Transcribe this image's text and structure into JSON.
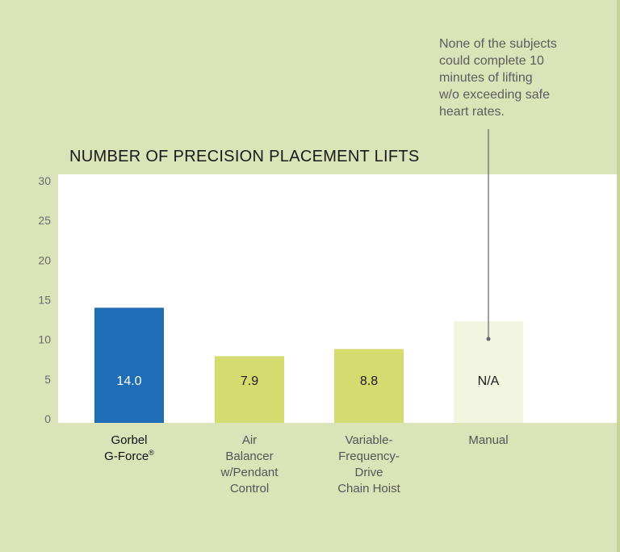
{
  "annotation": {
    "lines": [
      "None of the subjects",
      "could complete 10",
      "minutes of lifting",
      "w/o exceeding safe",
      "heart rates."
    ]
  },
  "colors": {
    "background": "#dbe3b9",
    "plot_area": "#ffffff",
    "gorbel": "#1f6db5",
    "comparison": "#d4dc6f",
    "na": "#f2f5df"
  },
  "chart_data": {
    "type": "bar",
    "title": "NUMBER OF PRECISION PLACEMENT LIFTS",
    "ylim": [
      0,
      30
    ],
    "yticks": [
      "0",
      "5",
      "10",
      "15",
      "20",
      "25",
      "30"
    ],
    "grid": false,
    "bars": [
      {
        "category_lines": [
          "Gorbel",
          "G-Force®"
        ],
        "value": 14.0,
        "label": "14.0",
        "color": "#1f6db5",
        "label_color": "#ffffff",
        "highlight": true
      },
      {
        "category_lines": [
          "Air",
          "Balancer",
          "w/Pendant",
          "Control"
        ],
        "value": 7.9,
        "label": "7.9",
        "color": "#d4dc6f",
        "label_color": "#1a1a1a",
        "highlight": false
      },
      {
        "category_lines": [
          "Variable-",
          "Frequency-",
          "Drive",
          "Chain Hoist"
        ],
        "value": 8.8,
        "label": "8.8",
        "color": "#d4dc6f",
        "label_color": "#1a1a1a",
        "highlight": false
      },
      {
        "category_lines": [
          "Manual"
        ],
        "value": null,
        "placeholder_value": 12.3,
        "label": "N/A",
        "color": "#f2f5df",
        "label_color": "#1a1a1a",
        "highlight": false
      }
    ]
  }
}
